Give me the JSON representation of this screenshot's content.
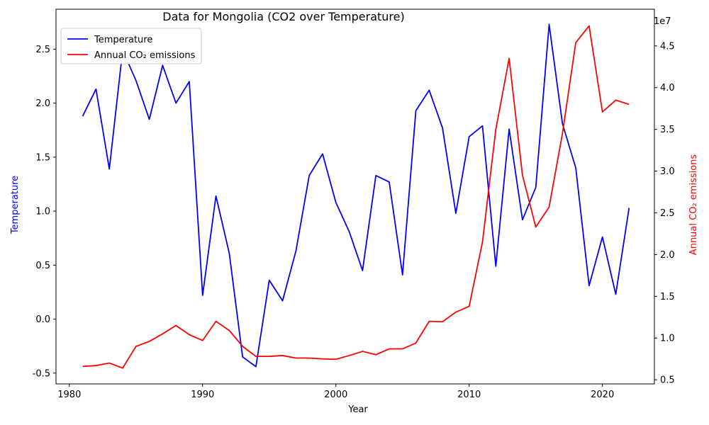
{
  "chart_data": {
    "type": "line",
    "title": "Data for Mongolia (CO2 over Temperature)",
    "xlabel": "Year",
    "ylabel_left": "Temperature",
    "ylabel_right": "Annual CO₂ emissions",
    "right_axis_multiplier": "1e7",
    "xlim": [
      1979,
      2023.9
    ],
    "ylim_left": [
      -0.6,
      2.87
    ],
    "ylim_right": [
      4500000,
      49400000
    ],
    "x_ticks": [
      1980,
      1990,
      2000,
      2010,
      2020
    ],
    "y_ticks_left": [
      -0.5,
      0.0,
      0.5,
      1.0,
      1.5,
      2.0,
      2.5
    ],
    "y_ticks_right": [
      5000000,
      10000000,
      15000000,
      20000000,
      25000000,
      30000000,
      35000000,
      40000000,
      45000000
    ],
    "y_tick_labels_right": [
      "0.5",
      "1.0",
      "1.5",
      "2.0",
      "2.5",
      "3.0",
      "3.5",
      "4.0",
      "4.5"
    ],
    "grid": false,
    "legend_position": "top-left",
    "x": [
      1981,
      1982,
      1983,
      1984,
      1985,
      1986,
      1987,
      1988,
      1989,
      1990,
      1991,
      1992,
      1993,
      1994,
      1995,
      1996,
      1997,
      1998,
      1999,
      2000,
      2001,
      2002,
      2003,
      2004,
      2005,
      2006,
      2007,
      2008,
      2009,
      2010,
      2011,
      2012,
      2013,
      2014,
      2015,
      2016,
      2017,
      2018,
      2019,
      2020,
      2021,
      2022
    ],
    "series": [
      {
        "name": "Temperature",
        "axis": "left",
        "color": "#0000ff",
        "values": [
          1.88,
          2.13,
          1.39,
          2.49,
          2.21,
          1.85,
          2.35,
          2.0,
          2.2,
          0.22,
          1.14,
          0.61,
          -0.35,
          -0.44,
          0.36,
          0.17,
          0.63,
          1.33,
          1.53,
          1.08,
          0.81,
          0.45,
          1.33,
          1.27,
          0.41,
          1.93,
          2.12,
          1.77,
          0.98,
          1.69,
          1.79,
          0.49,
          1.76,
          0.92,
          1.22,
          2.73,
          1.81,
          1.4,
          0.31,
          0.76,
          0.23,
          1.03
        ]
      },
      {
        "name": "Annual CO₂ emissions",
        "axis": "right",
        "color": "#ff0000",
        "values": [
          6600000,
          6700000,
          7000000,
          6400000,
          9000000,
          9600000,
          10500000,
          11500000,
          10400000,
          9700000,
          12000000,
          10900000,
          9000000,
          7800000,
          7800000,
          7900000,
          7600000,
          7600000,
          7500000,
          7450000,
          7900000,
          8400000,
          8000000,
          8700000,
          8700000,
          9400000,
          12000000,
          11950000,
          13100000,
          13800000,
          21500000,
          35000000,
          43500000,
          29500000,
          23300000,
          25700000,
          34500000,
          45400000,
          47400000,
          37100000,
          38500000,
          38000000
        ]
      }
    ]
  }
}
